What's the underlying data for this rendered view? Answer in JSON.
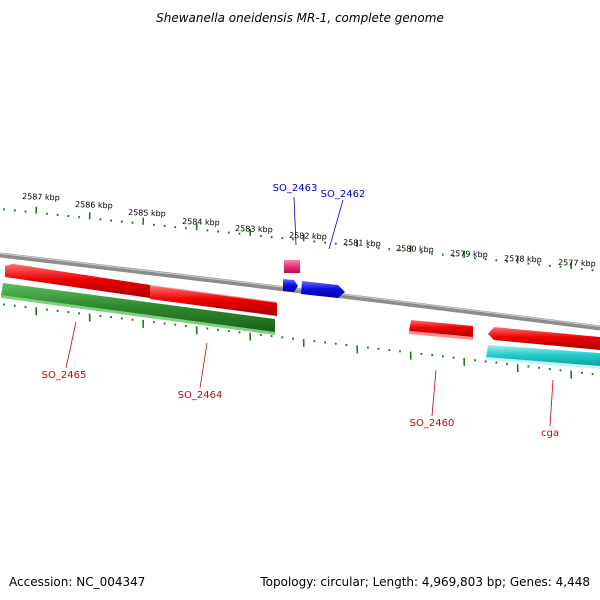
{
  "title": "Shewanella oneidensis MR-1, complete genome",
  "footer": {
    "accession": "Accession: NC_004347",
    "summary": "Topology: circular; Length: 4,969,803 bp; Genes: 4,448"
  },
  "scale_labels": [
    "2587 kbp",
    "2586 kbp",
    "2585 kbp",
    "2584 kbp",
    "2583 kbp",
    "2582 kbp",
    "2581 kbp",
    "2580 kbp",
    "2579 kbp",
    "2578 kbp",
    "2577 kbp"
  ],
  "genes": [
    {
      "name": "SO_2463",
      "color": "#0000cc"
    },
    {
      "name": "SO_2462",
      "color": "#0000cc"
    },
    {
      "name": "SO_2465",
      "color": "#cc0000"
    },
    {
      "name": "SO_2464",
      "color": "#cc0000"
    },
    {
      "name": "SO_2460",
      "color": "#cc0000"
    },
    {
      "name": "cga",
      "color": "#cc0000"
    }
  ],
  "colors": {
    "backbone": "#8c8c8c",
    "tick": "#1a7a1a",
    "forward_gene": "#ee0000",
    "reverse_gene": "#2e8b2e",
    "rna_gene": "#22cccc",
    "small_gene": "#e8307a",
    "blue_gene": "#1010e0"
  }
}
